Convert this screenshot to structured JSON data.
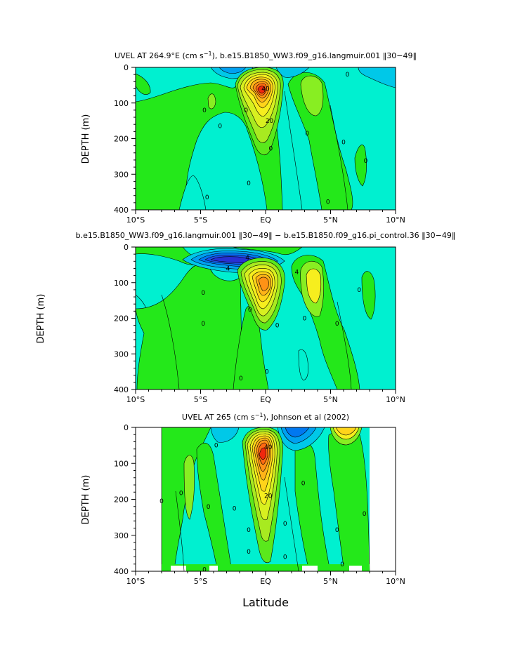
{
  "figure": {
    "x_axis_label": "Latitude"
  },
  "chart_data": [
    {
      "type": "heatmap",
      "subtype": "filled-contour",
      "title": "UVEL AT 264.9°E (cm s⁻¹), b.e15.B1850_WW3.f09_g16.langmuir.001 ‖30–49‖",
      "title_parts": {
        "before_exp": "UVEL AT 264.9°E (cm s",
        "exp": "−1",
        "after_exp": "), b.e15.B1850_WW3.f09_g16.langmuir.001 ‖30−49‖"
      },
      "ylabel": "DEPTH (m)",
      "xlabel": "",
      "x_ticks": [
        "10°S",
        "5°S",
        "EQ",
        "5°N",
        "10°N"
      ],
      "x_tick_values": [
        -10,
        -5,
        0,
        5,
        10
      ],
      "y_ticks": [
        "0",
        "100",
        "200",
        "300",
        "400"
      ],
      "y_tick_values": [
        0,
        100,
        200,
        300,
        400
      ],
      "xlim": [
        -10,
        10
      ],
      "ylim": [
        400,
        0
      ],
      "contour_labels": [
        {
          "text": "40",
          "lat": 0.0,
          "depth": 60
        },
        {
          "text": "20",
          "lat": 0.3,
          "depth": 150
        },
        {
          "text": "0",
          "lat": -4.7,
          "depth": 120
        },
        {
          "text": "0",
          "lat": -3.5,
          "depth": 165
        },
        {
          "text": "0",
          "lat": -1.5,
          "depth": 120
        },
        {
          "text": "0",
          "lat": -1.3,
          "depth": 325
        },
        {
          "text": "0",
          "lat": 0.4,
          "depth": 228
        },
        {
          "text": "0",
          "lat": 3.2,
          "depth": 185
        },
        {
          "text": "0",
          "lat": 6.0,
          "depth": 210
        },
        {
          "text": "0",
          "lat": 7.7,
          "depth": 262
        },
        {
          "text": "0",
          "lat": 6.3,
          "depth": 20
        },
        {
          "text": "0",
          "lat": 4.8,
          "depth": 377
        },
        {
          "text": "0",
          "lat": -4.5,
          "depth": 365
        }
      ]
    },
    {
      "type": "heatmap",
      "subtype": "filled-contour",
      "title": "b.e15.B1850_WW3.f09_g16.langmuir.001 ‖30–49‖ – b.e15.B1850.f09_g16.pi_control.36 ‖30–49‖",
      "title_parts": {
        "before_exp": "b.e15.B1850_WW3.f09_g16.langmuir.001 ‖30−49‖ − b.e15.B1850.f09_g16.pi_control.36 ‖30−49‖",
        "exp": "",
        "after_exp": ""
      },
      "ylabel": "DEPTH (m)",
      "xlabel": "",
      "x_ticks": [
        "10°S",
        "5°S",
        "EQ",
        "5°N",
        "10°N"
      ],
      "x_tick_values": [
        -10,
        -5,
        0,
        5,
        10
      ],
      "y_ticks": [
        "0",
        "100",
        "200",
        "300",
        "400"
      ],
      "y_tick_values": [
        0,
        100,
        200,
        300,
        400
      ],
      "xlim": [
        -10,
        10
      ],
      "ylim": [
        400,
        0
      ],
      "contour_labels": [
        {
          "text": "4",
          "lat": -1.4,
          "depth": 30
        },
        {
          "text": "4",
          "lat": -2.9,
          "depth": 60
        },
        {
          "text": "4",
          "lat": 2.4,
          "depth": 70
        },
        {
          "text": "0",
          "lat": -4.8,
          "depth": 128
        },
        {
          "text": "0",
          "lat": -1.2,
          "depth": 175
        },
        {
          "text": "0",
          "lat": 0.9,
          "depth": 220
        },
        {
          "text": "0",
          "lat": 3.0,
          "depth": 200
        },
        {
          "text": "0",
          "lat": 5.5,
          "depth": 215
        },
        {
          "text": "0",
          "lat": 7.2,
          "depth": 120
        },
        {
          "text": "0",
          "lat": -1.9,
          "depth": 368
        },
        {
          "text": "0",
          "lat": -4.8,
          "depth": 215
        },
        {
          "text": "0",
          "lat": 0.1,
          "depth": 350
        }
      ]
    },
    {
      "type": "heatmap",
      "subtype": "filled-contour",
      "title": "UVEL AT 265 (cm s⁻¹), Johnson et al (2002)",
      "title_parts": {
        "before_exp": "UVEL AT 265 (cm s",
        "exp": "−1",
        "after_exp": "), Johnson et al (2002)"
      },
      "ylabel": "DEPTH (m)",
      "xlabel": "Latitude",
      "x_ticks": [
        "10°S",
        "5°S",
        "EQ",
        "5°N",
        "10°N"
      ],
      "x_tick_values": [
        -10,
        -5,
        0,
        5,
        10
      ],
      "y_ticks": [
        "0",
        "100",
        "200",
        "300",
        "400"
      ],
      "y_tick_values": [
        0,
        100,
        200,
        300,
        400
      ],
      "xlim": [
        -10,
        10
      ],
      "ylim": [
        400,
        0
      ],
      "data_lat_range": [
        -8,
        8
      ],
      "contour_labels": [
        {
          "text": "40",
          "lat": 0.2,
          "depth": 55
        },
        {
          "text": "20",
          "lat": 0.2,
          "depth": 190
        },
        {
          "text": "0",
          "lat": -3.8,
          "depth": 50
        },
        {
          "text": "0",
          "lat": -8.0,
          "depth": 205
        },
        {
          "text": "0",
          "lat": -6.5,
          "depth": 182
        },
        {
          "text": "0",
          "lat": -4.4,
          "depth": 220
        },
        {
          "text": "0",
          "lat": -2.4,
          "depth": 225
        },
        {
          "text": "0",
          "lat": -1.3,
          "depth": 285
        },
        {
          "text": "0",
          "lat": -1.3,
          "depth": 345
        },
        {
          "text": "0",
          "lat": 1.5,
          "depth": 360
        },
        {
          "text": "0",
          "lat": 1.5,
          "depth": 267
        },
        {
          "text": "0",
          "lat": 2.9,
          "depth": 155
        },
        {
          "text": "0",
          "lat": 5.5,
          "depth": 285
        },
        {
          "text": "0",
          "lat": 7.6,
          "depth": 240
        },
        {
          "text": "0",
          "lat": 5.9,
          "depth": 380
        },
        {
          "text": "0",
          "lat": -4.7,
          "depth": 395
        }
      ]
    }
  ]
}
